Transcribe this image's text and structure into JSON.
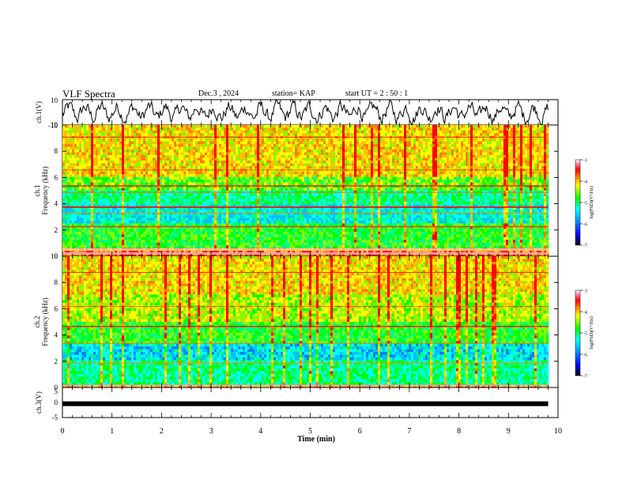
{
  "header": {
    "title": "VLF Spectra",
    "date": "Dec.3 , 2024",
    "station": "station= KAP",
    "start_ut": "start UT = 2 : 50 : 1"
  },
  "colors": {
    "spectrogram_scale": [
      "#000000",
      "#0000ff",
      "#00a0ff",
      "#00ffff",
      "#00ff00",
      "#ffff00",
      "#ff8000",
      "#ff0000",
      "#ff80a0",
      "#ffffff"
    ],
    "trace": "#000000"
  },
  "chart_data": [
    {
      "type": "line",
      "name": "ch1-waveform",
      "ylabel": "ch.1(V)",
      "ylim": [
        -10,
        10
      ],
      "yticks": [
        "10",
        "-10"
      ],
      "xlim": [
        0,
        10
      ],
      "data_extent_min": 9.8,
      "description_values": "noisy waveform oscillating between about -7 and 7 V"
    },
    {
      "type": "heatmap",
      "name": "ch1-spectrogram",
      "ylabel": "ch.1\nFrequency (kHz)",
      "ylabel_lines": [
        "ch.1",
        "Frequency (kHz)"
      ],
      "ylim": [
        0,
        10
      ],
      "yticks": [
        "0",
        "2",
        "4",
        "6",
        "8",
        "10"
      ],
      "xlim": [
        0,
        10
      ],
      "colorbar": {
        "label": "log(PSD)(V²/Hz)",
        "range": [
          -7,
          -3
        ],
        "ticks": [
          "-3",
          "-4",
          "-5",
          "-6",
          "-7"
        ]
      }
    },
    {
      "type": "heatmap",
      "name": "ch2-spectrogram",
      "ylabel_lines": [
        "ch.2",
        "Frequency (kHz)"
      ],
      "ylim": [
        0,
        10
      ],
      "yticks": [
        "0",
        "2",
        "4",
        "6",
        "8",
        "10"
      ],
      "xlim": [
        0,
        10
      ],
      "colorbar": {
        "label": "log(PSD)(V²/Hz)",
        "range": [
          -7,
          -3
        ],
        "ticks": [
          "-3",
          "-4",
          "-5",
          "-6",
          "-7"
        ]
      }
    },
    {
      "type": "line",
      "name": "ch3-waveform",
      "ylabel": "ch.3(V)",
      "ylim": [
        -5,
        5
      ],
      "yticks": [
        "5",
        "0",
        "-5"
      ],
      "xlim": [
        0,
        10
      ],
      "value_approx": -0.4
    }
  ],
  "xaxis": {
    "label": "Time (min)",
    "ticks": [
      "0",
      "1",
      "2",
      "3",
      "4",
      "5",
      "6",
      "7",
      "8",
      "9",
      "10"
    ],
    "range": [
      0,
      10
    ]
  }
}
